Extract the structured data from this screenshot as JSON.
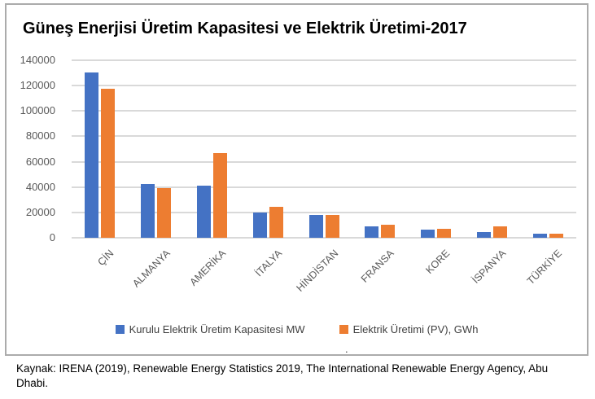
{
  "source_note": "Kaynak: IRENA (2019), Renewable Energy Statistics 2019, The International Renewable Energy Agency, Abu Dhabi.",
  "stray_dot": ".",
  "colors": {
    "series_capacity": "#4472c4",
    "series_generation": "#ed7d31",
    "gridline": "#d9d9d9",
    "chart_border": "#ababab",
    "tick_text": "#595959",
    "legend_text": "#404040",
    "title_text": "#000000"
  },
  "chart_data": {
    "type": "bar",
    "title": "Güneş Enerjisi Üretim Kapasitesi ve Elektrik Üretimi-2017",
    "categories": [
      "ÇİN",
      "ALMANYA",
      "AMERİKA",
      "İTALYA",
      "HİNDİSTAN",
      "FRANSA",
      "KORE",
      "İSPANYA",
      "TÜRKİYE"
    ],
    "series": [
      {
        "name": "Kurulu Elektrik Üretim Kapasitesi MW",
        "color": "#4472c4",
        "values": [
          130500,
          42300,
          41000,
          19700,
          18000,
          8700,
          6200,
          4800,
          3500
        ]
      },
      {
        "name": "Elektrik Üretimi (PV), GWh",
        "color": "#ed7d31",
        "values": [
          117500,
          39400,
          67000,
          24400,
          17900,
          10000,
          6900,
          9100,
          2900
        ]
      }
    ],
    "xlabel": "",
    "ylabel": "",
    "ylim": [
      0,
      140000
    ],
    "ytick_interval": 20000,
    "grid": true,
    "legend_position": "bottom"
  }
}
